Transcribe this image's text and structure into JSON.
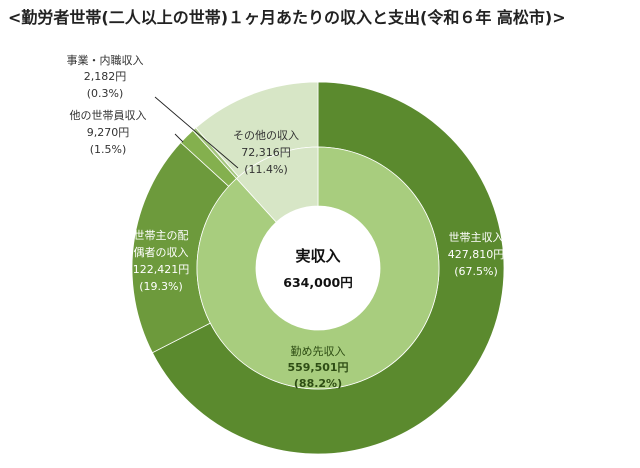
{
  "chart_data": {
    "type": "pie",
    "title": "<勤労者世帯(二人以上の世帯)１ヶ月あたりの収入と支出(令和６年 高松市)>",
    "center": {
      "label": "実収入",
      "value": "634,000円"
    },
    "outer_ring": [
      {
        "name": "世帯主収入",
        "value": 427810,
        "value_text": "427,810円",
        "percent_text": "(67.5%)",
        "color": "#5b8a2e"
      },
      {
        "name": "世帯主の配偶者の収入",
        "value": 122421,
        "value_text": "122,421円",
        "percent_text": "(19.3%)",
        "color": "#6d9a3c"
      },
      {
        "name": "他の世帯員収入",
        "value": 9270,
        "value_text": "9,270円",
        "percent_text": "(1.5%)",
        "color": "#84b04e"
      },
      {
        "name": "事業・内職収入",
        "value": 2182,
        "value_text": "2,182円",
        "percent_text": "(0.3%)",
        "color": "#a4c67e"
      },
      {
        "name": "その他の収入",
        "value": 72316,
        "value_text": "72,316円",
        "percent_text": "(11.4%)",
        "color": "#d7e6c6"
      }
    ],
    "inner_ring": [
      {
        "name": "勤め先収入",
        "value": 559501,
        "value_text": "559,501円",
        "percent_text": "(88.2%)",
        "color": "#a8cd7e"
      },
      {
        "name": "その他",
        "value": 74499,
        "color": "#d7e6c6"
      }
    ]
  }
}
